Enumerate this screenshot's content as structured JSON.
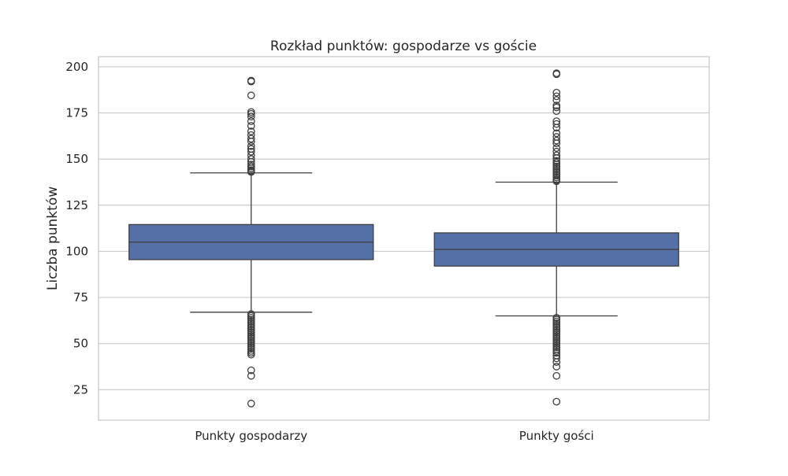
{
  "chart_data": {
    "type": "boxplot",
    "title": "Rozkład punktów: gospodarze vs goście",
    "xlabel": "",
    "ylabel": "Liczba punktów",
    "ylim": [
      8.5,
      205.5
    ],
    "yticks": [
      25,
      50,
      75,
      100,
      125,
      150,
      175,
      200
    ],
    "grid": true,
    "categories": [
      "Punkty gospodarzy",
      "Punkty gości"
    ],
    "colors": {
      "box": "#5470a6",
      "edge": "#3f3f3f",
      "grid": "#cccccc",
      "frame": "#cccccc"
    },
    "series": [
      {
        "q1": 95.5,
        "median": 105,
        "q3": 114.5,
        "whisker_low": 67,
        "whisker_high": 142.5,
        "outliers": [
          192.5,
          192,
          184.5,
          175.5,
          174.5,
          173,
          170.5,
          168,
          165,
          163,
          161,
          159.5,
          157,
          155.5,
          154,
          152,
          150,
          148.5,
          147,
          146,
          145,
          144,
          143.5,
          143,
          66,
          65,
          64,
          63,
          62,
          61,
          60,
          59,
          58,
          57,
          56,
          55,
          54,
          53,
          52,
          51,
          50,
          49,
          48,
          47,
          46,
          45,
          44,
          35.5,
          32.5,
          17.5
        ]
      },
      {
        "q1": 92,
        "median": 101,
        "q3": 110,
        "whisker_low": 65,
        "whisker_high": 137.5,
        "outliers": [
          196.5,
          196,
          186,
          184,
          182,
          179,
          178,
          176,
          170.5,
          169,
          167,
          164,
          162,
          160,
          158.5,
          156,
          154,
          152,
          150.5,
          149,
          148,
          147,
          146,
          145,
          144,
          143,
          142,
          141,
          140,
          139,
          138.5,
          138,
          64,
          63,
          62,
          61,
          60,
          59,
          58,
          57,
          56,
          55,
          54,
          53,
          52,
          51,
          50,
          49,
          48,
          47,
          46,
          45,
          43.5,
          42,
          40,
          37.5,
          32.5,
          18.5
        ]
      }
    ]
  }
}
